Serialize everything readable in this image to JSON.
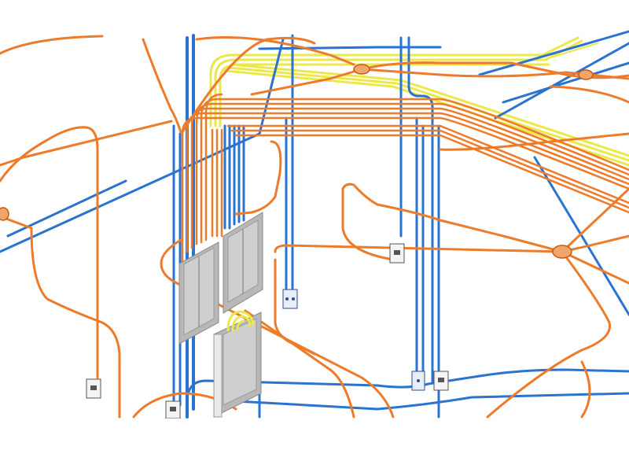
{
  "colors": {
    "background": "#ffffff",
    "orange_conduit": "#ee7b2a",
    "blue_conduit": "#2a74d0",
    "yellow_conduit": "#ece84a",
    "panel_face": "#c8c8c8",
    "panel_frame": "#8a8a8a",
    "junction_fill": "#f2a56a"
  },
  "icons": {
    "panel": "electrical-panel-icon",
    "outlet": "outlet-box-icon",
    "junction": "junction-box-icon"
  }
}
